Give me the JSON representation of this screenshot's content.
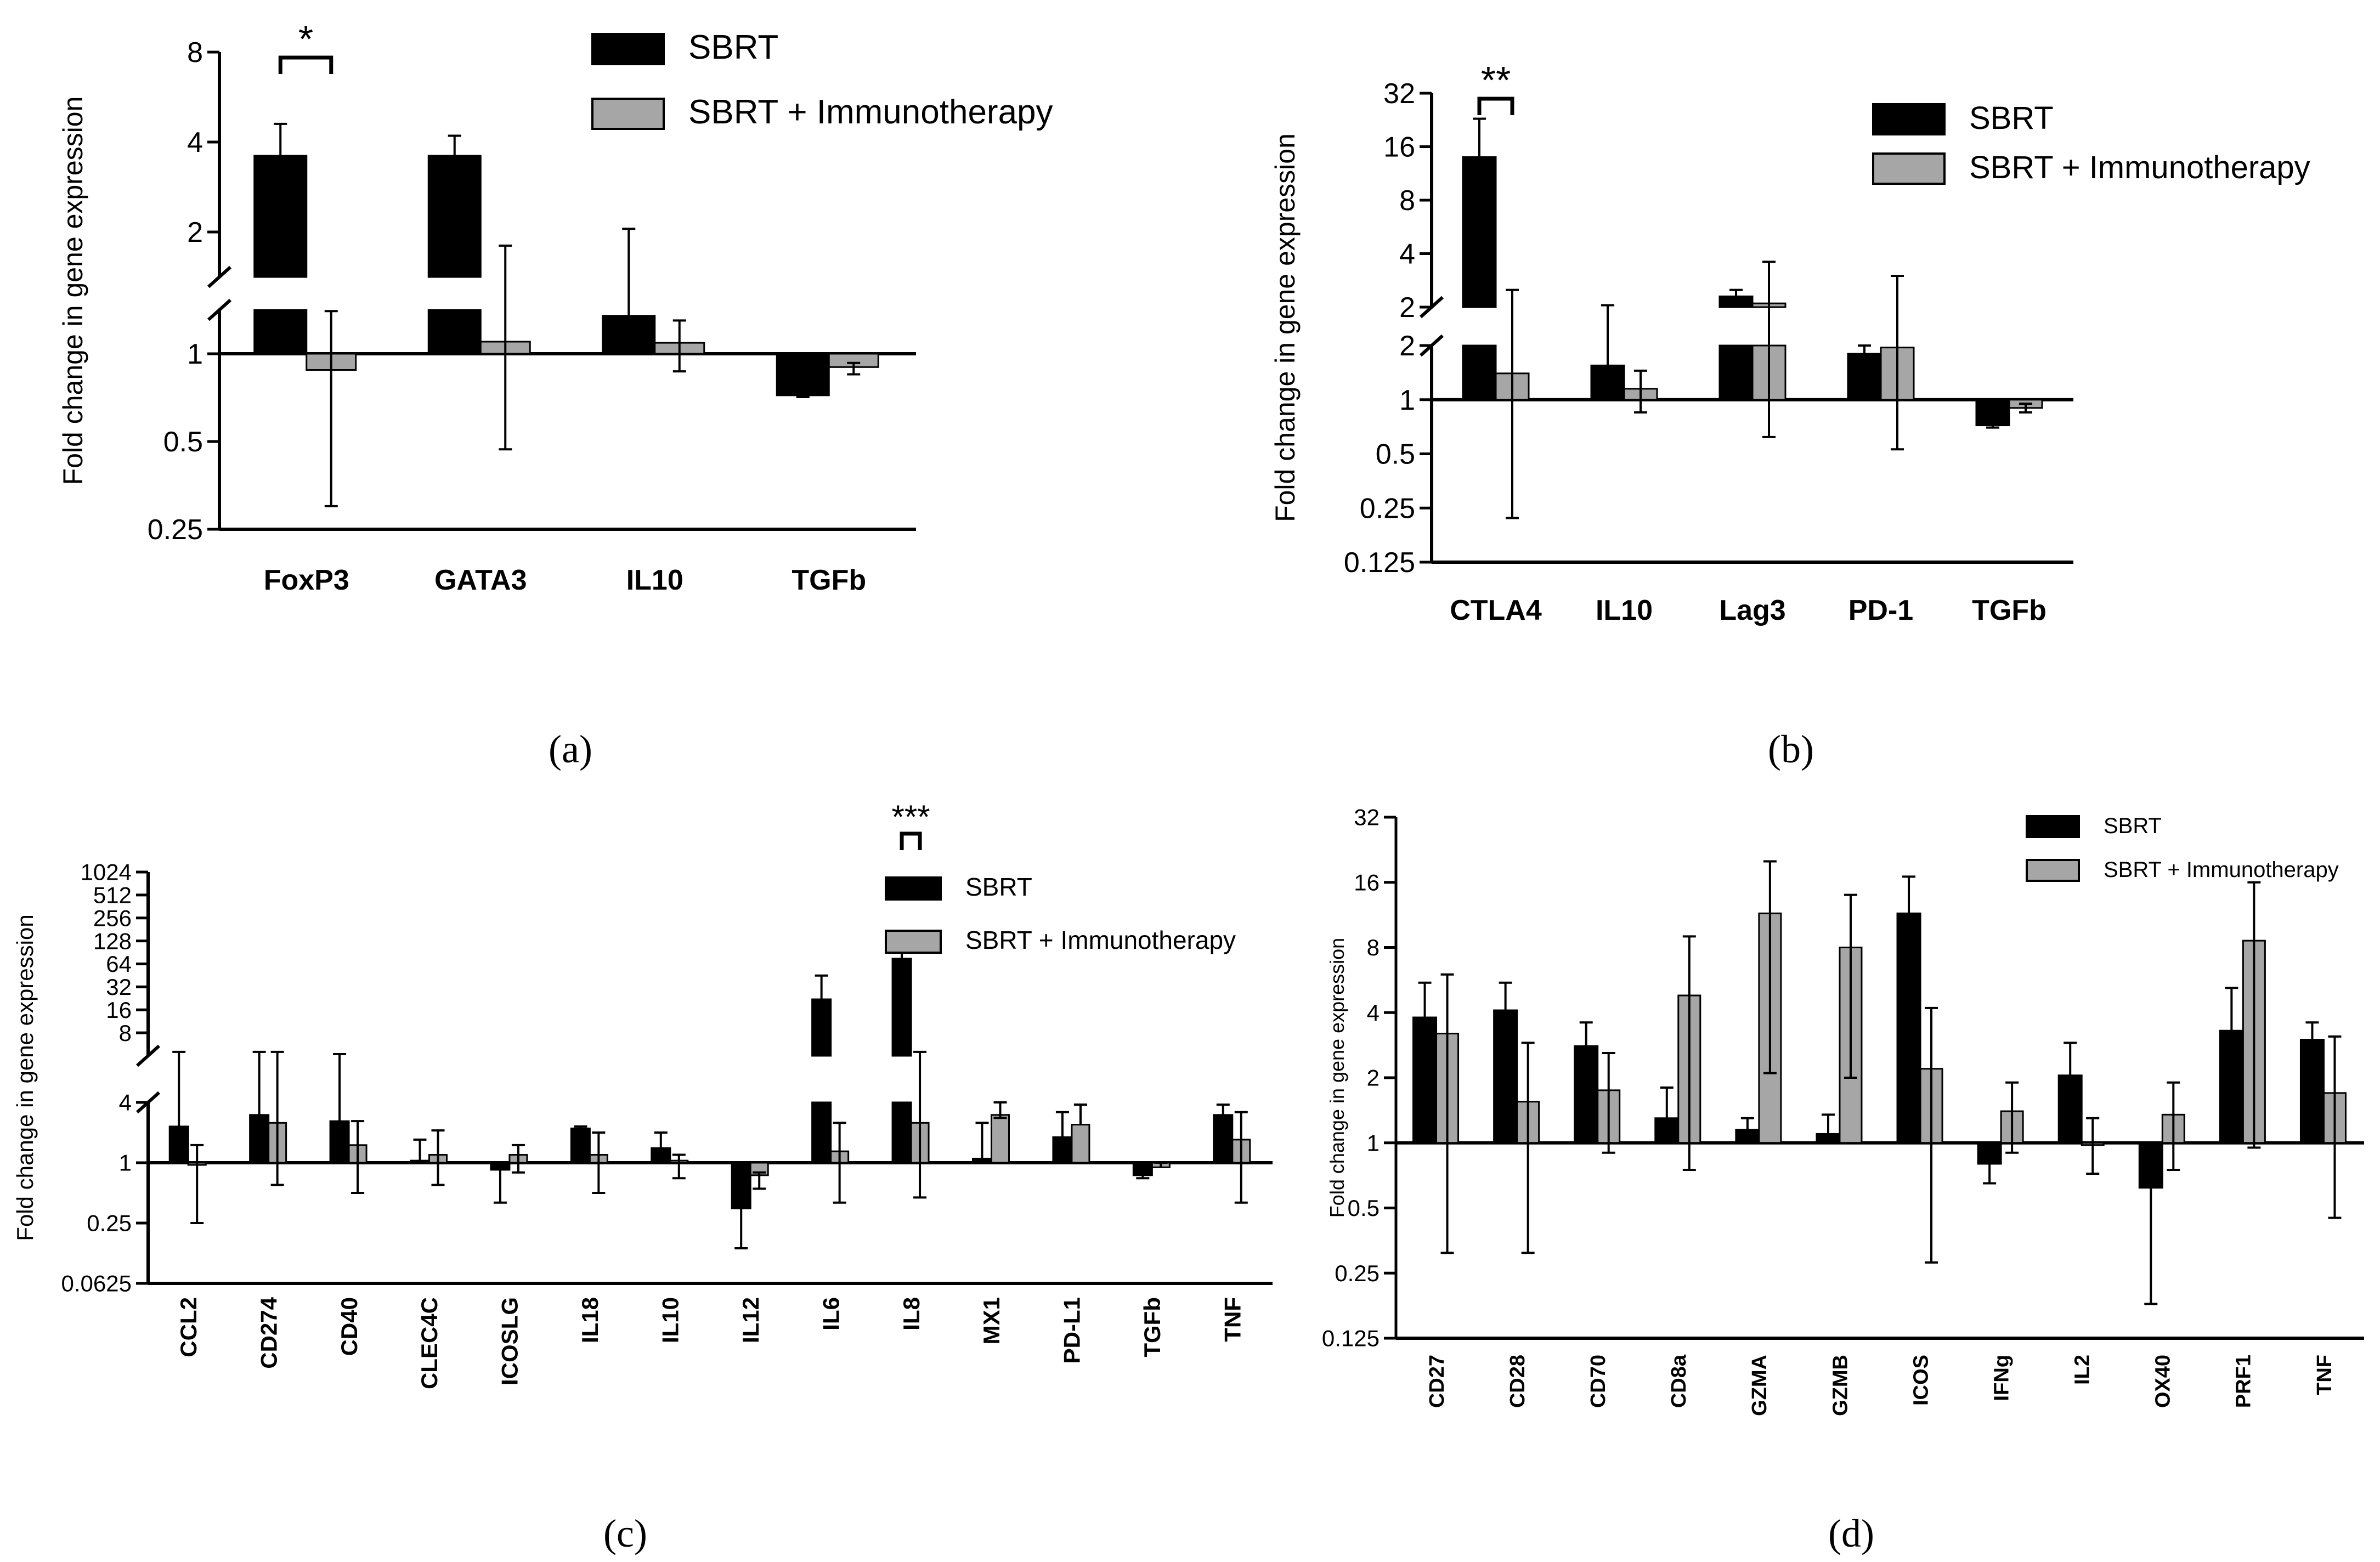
{
  "figure": {
    "colors": {
      "sbrt": "#000000",
      "sbrt_immuno": "#a6a6a6",
      "axis": "#000000"
    }
  },
  "chart_data": [
    {
      "panel": "(a)",
      "type": "bar",
      "ylabel": "Fold change in gene expression",
      "yscale": "log2",
      "ylim": [
        0.25,
        8
      ],
      "yticks": [
        "0.25",
        "0.5",
        "1",
        "2",
        "4",
        "8"
      ],
      "axis_break": true,
      "legend": [
        "SBRT",
        "SBRT + Immunotherapy"
      ],
      "categories": [
        "FoxP3",
        "GATA3",
        "IL10",
        "TGFb"
      ],
      "series": [
        {
          "name": "SBRT",
          "values": [
            3.6,
            3.6,
            1.35,
            0.72
          ],
          "errors": [
            4.6,
            4.2,
            2.05,
            0.71
          ]
        },
        {
          "name": "SBRT + Immunotherapy",
          "values": [
            0.88,
            1.1,
            1.09,
            0.9
          ],
          "errors": [
            0.3,
            0.47,
            0.87,
            0.85
          ],
          "errors_up": [
            1.4,
            1.8,
            1.3,
            0.93
          ]
        }
      ],
      "significance": [
        {
          "category": "FoxP3",
          "label": "*"
        }
      ]
    },
    {
      "panel": "(b)",
      "type": "bar",
      "ylabel": "Fold change in gene expression",
      "yscale": "log2",
      "ylim": [
        0.125,
        32
      ],
      "yticks": [
        "0.125",
        "0.25",
        "0.5",
        "1",
        "2",
        "2",
        "4",
        "8",
        "16",
        "32"
      ],
      "axis_break": true,
      "legend": [
        "SBRT",
        "SBRT + Immunotherapy"
      ],
      "categories": [
        "CTLA4",
        "IL10",
        "Lag3",
        "PD-1",
        "TGFb"
      ],
      "series": [
        {
          "name": "SBRT",
          "values": [
            14,
            1.55,
            2.3,
            1.8,
            0.72
          ],
          "errors": [
            23,
            2.05,
            2.5,
            2.0,
            0.7
          ]
        },
        {
          "name": "SBRT + Immunotherapy",
          "values": [
            1.4,
            1.15,
            2.1,
            1.95,
            0.9
          ],
          "errors": [
            0.22,
            0.85,
            0.62,
            0.53,
            0.85
          ],
          "errors_up": [
            2.5,
            1.45,
            3.6,
            3.0,
            0.95
          ]
        }
      ],
      "significance": [
        {
          "category": "CTLA4",
          "label": "**"
        }
      ]
    },
    {
      "panel": "(c)",
      "type": "bar",
      "ylabel": "Fold change in gene expression",
      "yscale": "log2",
      "ylim": [
        0.0625,
        1024
      ],
      "yticks": [
        "0.0625",
        "0.25",
        "1",
        "4",
        "8",
        "16",
        "32",
        "64",
        "128",
        "256",
        "512",
        "1024"
      ],
      "axis_break": true,
      "legend": [
        "SBRT",
        "SBRT + Immunotherapy"
      ],
      "categories": [
        "CCL2",
        "CD274",
        "CD40",
        "CLEC4C",
        "ICOSLG",
        "IL18",
        "IL10",
        "IL12",
        "IL6",
        "IL8",
        "MX1",
        "PD-L1",
        "TGFb",
        "TNF"
      ],
      "series": [
        {
          "name": "SBRT",
          "values": [
            2.3,
            3.0,
            2.6,
            1.05,
            0.85,
            2.2,
            1.4,
            0.35,
            22,
            75,
            1.1,
            1.8,
            0.75,
            3.0
          ],
          "errors": [
            4.5,
            4.5,
            4.2,
            1.7,
            0.4,
            2.3,
            2.0,
            0.14,
            45,
            140,
            2.5,
            3.2,
            0.7,
            3.8
          ]
        },
        {
          "name": "SBRT + Immunotherapy",
          "values": [
            1.0,
            2.5,
            1.5,
            1.2,
            1.2,
            1.2,
            1.05,
            0.75,
            1.3,
            2.5,
            3.0,
            2.4,
            0.9,
            1.7
          ],
          "errors": [
            0.25,
            0.6,
            0.5,
            0.6,
            0.8,
            0.5,
            0.7,
            0.55,
            0.4,
            0.45,
            2.8,
            3.8,
            1.0,
            0.4
          ],
          "errors_up": [
            1.5,
            4.5,
            2.6,
            2.1,
            1.5,
            2.0,
            1.2,
            0.8,
            2.5,
            4.5,
            4.0,
            3.8,
            1.0,
            3.2
          ]
        }
      ],
      "significance": [
        {
          "category": "IL8",
          "label": "***"
        }
      ]
    },
    {
      "panel": "(d)",
      "type": "bar",
      "ylabel": "Fold change in gene expression",
      "yscale": "log2",
      "ylim": [
        0.125,
        32
      ],
      "yticks": [
        "0.125",
        "0.25",
        "0.5",
        "1",
        "2",
        "4",
        "8",
        "16",
        "32"
      ],
      "axis_break": false,
      "legend": [
        "SBRT",
        "SBRT + Immunotherapy"
      ],
      "categories": [
        "CD27",
        "CD28",
        "CD70",
        "CD8a",
        "GZMA",
        "GZMB",
        "ICOS",
        "IFNg",
        "IL2",
        "OX40",
        "PRF1",
        "TNF"
      ],
      "series": [
        {
          "name": "SBRT",
          "values": [
            3.8,
            4.1,
            2.8,
            1.3,
            1.15,
            1.1,
            11.5,
            0.8,
            2.05,
            0.62,
            3.3,
            3.0
          ],
          "errors": [
            5.5,
            5.5,
            3.6,
            1.8,
            1.3,
            1.35,
            17,
            0.65,
            2.9,
            0.18,
            5.2,
            3.6
          ]
        },
        {
          "name": "SBRT + Immunotherapy",
          "values": [
            3.2,
            1.55,
            1.75,
            4.8,
            11.5,
            8.0,
            2.2,
            1.4,
            1.0,
            1.35,
            8.6,
            1.7
          ],
          "errors": [
            0.31,
            0.31,
            0.9,
            0.75,
            2.1,
            2.0,
            0.28,
            0.9,
            0.72,
            0.75,
            0.95,
            0.45
          ],
          "errors_up": [
            6.0,
            2.9,
            2.6,
            9.0,
            20,
            14,
            4.2,
            1.9,
            1.3,
            1.9,
            16,
            3.1
          ]
        }
      ]
    }
  ]
}
